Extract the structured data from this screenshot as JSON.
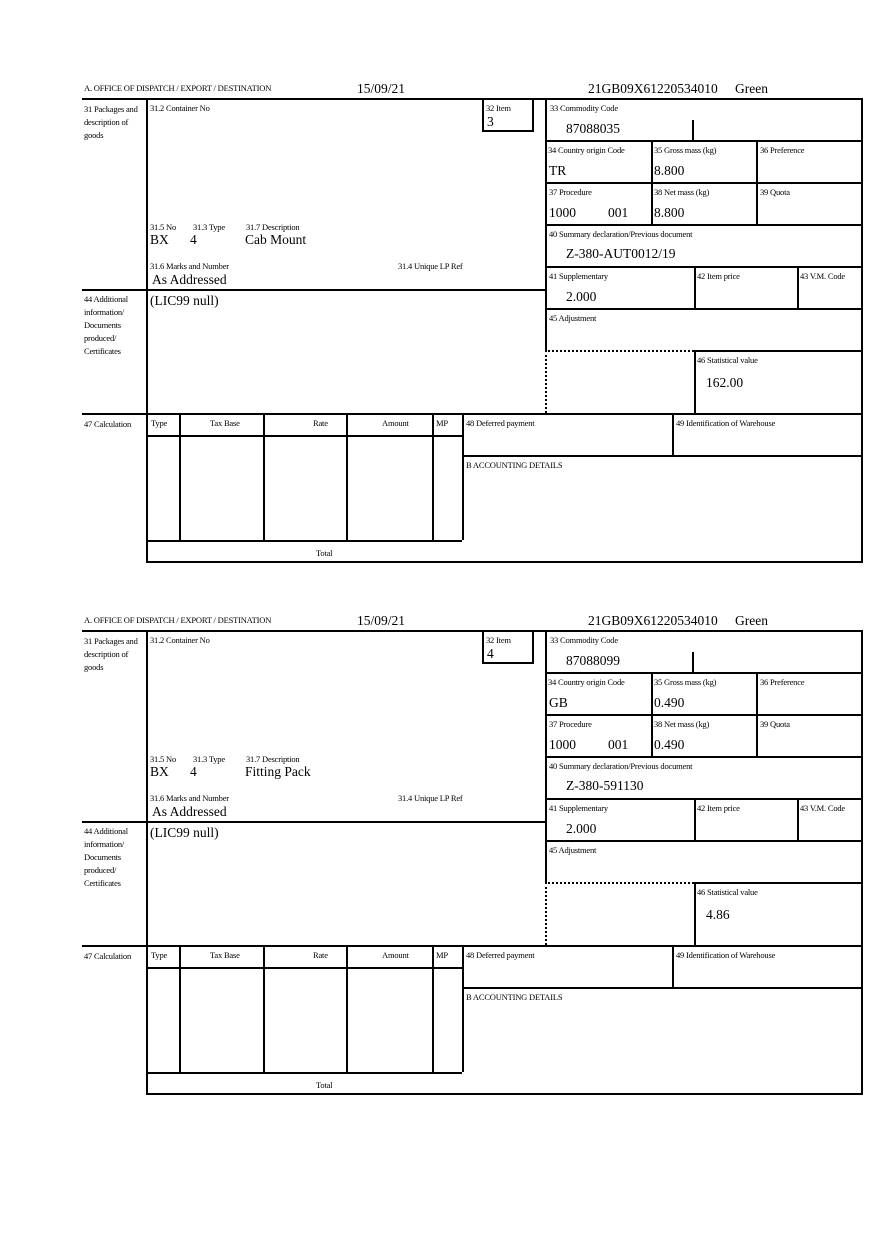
{
  "labels": {
    "office": "A. OFFICE OF DISPATCH / EXPORT / DESTINATION",
    "packages": "31 Packages and description of goods",
    "container_no": "31.2 Container No",
    "item": "32 Item",
    "commodity_code": "33 Commodity Code",
    "country_origin": "34 Country origin Code",
    "gross_mass": "35 Gross mass (kg)",
    "preference": "36 Preference",
    "procedure": "37 Procedure",
    "net_mass": "38 Net mass (kg)",
    "quota": "39 Quota",
    "summary_declaration": "40 Summary declaration/Previous document",
    "supplementary": "41 Supplementary",
    "item_price": "42 Item price",
    "vm_code": "43 V.M. Code",
    "adjustment": "45 Adjustment",
    "statistical_value": "46 Statistical value",
    "no": "31.5 No",
    "type": "31.3 Type",
    "description": "31.7 Description",
    "marks": "31.6 Marks and Number",
    "unique_lp_ref": "31.4 Unique LP Ref",
    "additional_info": "44 Additional information/ Documents produced/ Certificates",
    "calculation": "47 Calculation",
    "calc_columns": [
      "Type",
      "Tax Base",
      "Rate",
      "Amount",
      "MP"
    ],
    "deferred_payment": "48 Deferred payment",
    "warehouse": "49 Identification of Warehouse",
    "accounting": "B ACCOUNTING DETAILS",
    "total": "Total"
  },
  "items": [
    {
      "date": "15/09/21",
      "reference": "21GB09X61220534010",
      "route": "Green",
      "item_no": "3",
      "commodity_code": "87088035",
      "country_origin": "TR",
      "gross_mass": "8.800",
      "procedure": "1000",
      "procedure_extra": "001",
      "net_mass": "8.800",
      "summary_declaration": "Z-380-AUT0012/19",
      "supplementary": "2.000",
      "statistical_value": "162.00",
      "package_no": "BX",
      "package_type": "4",
      "description": "Cab Mount",
      "marks": "As Addressed",
      "additional_info": "(LIC99 null)"
    },
    {
      "date": "15/09/21",
      "reference": "21GB09X61220534010",
      "route": "Green",
      "item_no": "4",
      "commodity_code": "87088099",
      "country_origin": "GB",
      "gross_mass": "0.490",
      "procedure": "1000",
      "procedure_extra": "001",
      "net_mass": "0.490",
      "summary_declaration": "Z-380-591130",
      "supplementary": "2.000",
      "statistical_value": "4.86",
      "package_no": "BX",
      "package_type": "4",
      "description": "Fitting Pack",
      "marks": "As Addressed",
      "additional_info": "(LIC99 null)"
    }
  ]
}
